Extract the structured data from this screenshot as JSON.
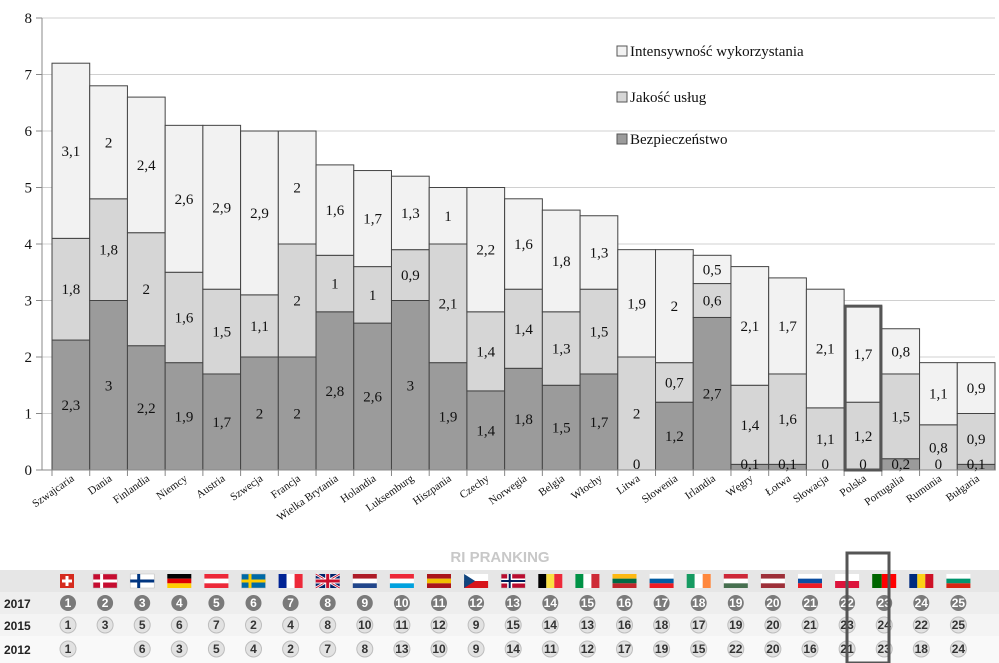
{
  "chart_data": {
    "type": "bar",
    "stacked": true,
    "title": "",
    "xlabel": "",
    "ylabel": "",
    "ylim": [
      0,
      8
    ],
    "yticks": [
      "0",
      "1",
      "2",
      "3",
      "4",
      "5",
      "6",
      "7",
      "8"
    ],
    "grid": true,
    "legend_position": "top-right",
    "categories": [
      "Szwajcaria",
      "Dania",
      "Finlandia",
      "Niemcy",
      "Austria",
      "Szwecja",
      "Francja",
      "Wielka Brytania",
      "Holandia",
      "Luksemburg",
      "Hiszpania",
      "Czechy",
      "Norwegia",
      "Belgia",
      "Włochy",
      "Litwa",
      "Słowenia",
      "Irlandia",
      "Węgry",
      "Łotwa",
      "Słowacja",
      "Polska",
      "Portugalia",
      "Rumunia",
      "Bułgaria"
    ],
    "highlighted_category": "Polska",
    "series": [
      {
        "name": "Bezpieczeństwo",
        "color": "#9b9b9b",
        "values": [
          2.3,
          3,
          2.2,
          1.9,
          1.7,
          2,
          2,
          2.8,
          2.6,
          3,
          1.9,
          1.4,
          1.8,
          1.5,
          1.7,
          0,
          1.2,
          2.7,
          0.1,
          0.1,
          0,
          0,
          0.2,
          0,
          0.1
        ],
        "labels": [
          "2,3",
          "3",
          "2,2",
          "1,9",
          "1,7",
          "2",
          "2",
          "2,8",
          "2,6",
          "3",
          "1,9",
          "1,4",
          "1,8",
          "1,5",
          "1,7",
          "0",
          "1,2",
          "2,7",
          "0,1",
          "0,1",
          "0",
          "0",
          "0,2",
          "0",
          "0,1"
        ]
      },
      {
        "name": "Jakość usług",
        "color": "#d6d6d6",
        "values": [
          1.8,
          1.8,
          2,
          1.6,
          1.5,
          1.1,
          2,
          1,
          1,
          0.9,
          2.1,
          1.4,
          1.4,
          1.3,
          1.5,
          2,
          0.7,
          0.6,
          1.4,
          1.6,
          1.1,
          1.2,
          1.5,
          0.8,
          0.9
        ],
        "labels": [
          "1,8",
          "1,8",
          "2",
          "1,6",
          "1,5",
          "1,1",
          "2",
          "1",
          "1",
          "0,9",
          "2,1",
          "1,4",
          "1,4",
          "1,3",
          "1,5",
          "2",
          "0,7",
          "0,6",
          "1,4",
          "1,6",
          "1,1",
          "1,2",
          "1,5",
          "0,8",
          "0,9"
        ]
      },
      {
        "name": "Intensywność wykorzystania",
        "color": "#f2f2f2",
        "values": [
          3.1,
          2,
          2.4,
          2.6,
          2.9,
          2.9,
          2,
          1.6,
          1.7,
          1.3,
          1,
          2.2,
          1.6,
          1.8,
          1.3,
          1.9,
          2,
          0.5,
          2.1,
          1.7,
          2.1,
          1.7,
          0.8,
          1.1,
          0.9
        ],
        "labels": [
          "3,1",
          "2",
          "2,4",
          "2,6",
          "2,9",
          "2,9",
          "2",
          "1,6",
          "1,7",
          "1,3",
          "1",
          "2,2",
          "1,6",
          "1,8",
          "1,3",
          "1,9",
          "2",
          "0,5",
          "2,1",
          "1,7",
          "2,1",
          "1,7",
          "0,8",
          "1,1",
          "0,9"
        ]
      }
    ]
  },
  "ranking": {
    "title": "RI PRANKING",
    "years": [
      "2017",
      "2015",
      "2012"
    ],
    "highlight_index": 21,
    "rows": [
      [
        "1",
        "2",
        "3",
        "4",
        "5",
        "6",
        "7",
        "8",
        "9",
        "10",
        "11",
        "12",
        "13",
        "14",
        "15",
        "16",
        "17",
        "18",
        "19",
        "20",
        "21",
        "22",
        "23",
        "24",
        "25"
      ],
      [
        "1",
        "3",
        "5",
        "6",
        "7",
        "2",
        "4",
        "8",
        "10",
        "11",
        "12",
        "9",
        "15",
        "14",
        "13",
        "16",
        "18",
        "17",
        "19",
        "20",
        "21",
        "23",
        "24",
        "22",
        "25"
      ],
      [
        "1",
        "",
        "6",
        "3",
        "5",
        "4",
        "2",
        "7",
        "8",
        "13",
        "10",
        "9",
        "14",
        "11",
        "12",
        "17",
        "19",
        "15",
        "22",
        "20",
        "16",
        "21",
        "23",
        "18",
        "24"
      ]
    ],
    "flags": [
      {
        "country": "Szwajcaria",
        "colors": [
          "#d52b1e"
        ],
        "icon": "cross-white"
      },
      {
        "country": "Dania",
        "colors": [
          "#c60c30"
        ],
        "icon": "nordic-cross-white"
      },
      {
        "country": "Finlandia",
        "colors": [
          "#ffffff"
        ],
        "icon": "nordic-cross-blue"
      },
      {
        "country": "Niemcy",
        "colors": [
          "#000000",
          "#dd0000",
          "#ffce00"
        ],
        "icon": "horizontal-tricolor"
      },
      {
        "country": "Austria",
        "colors": [
          "#ed2939",
          "#ffffff",
          "#ed2939"
        ],
        "icon": "horizontal-tricolor"
      },
      {
        "country": "Szwecja",
        "colors": [
          "#006aa7"
        ],
        "icon": "nordic-cross-yellow"
      },
      {
        "country": "Francja",
        "colors": [
          "#002395",
          "#ffffff",
          "#ed2939"
        ],
        "icon": "vertical-tricolor"
      },
      {
        "country": "Wielka Brytania",
        "colors": [
          "#012169"
        ],
        "icon": "union-jack"
      },
      {
        "country": "Holandia",
        "colors": [
          "#ae1c28",
          "#ffffff",
          "#21468b"
        ],
        "icon": "horizontal-tricolor"
      },
      {
        "country": "Luksemburg",
        "colors": [
          "#ed2939",
          "#ffffff",
          "#00a1de"
        ],
        "icon": "horizontal-tricolor"
      },
      {
        "country": "Hiszpania",
        "colors": [
          "#aa151b",
          "#f1bf00",
          "#aa151b"
        ],
        "icon": "horizontal-tricolor"
      },
      {
        "country": "Czechy",
        "colors": [
          "#ffffff",
          "#d7141a",
          "#11457e"
        ],
        "icon": "czech"
      },
      {
        "country": "Norwegia",
        "colors": [
          "#ba0c2f"
        ],
        "icon": "nordic-cross-blue-white"
      },
      {
        "country": "Belgia",
        "colors": [
          "#000000",
          "#fae042",
          "#ed2939"
        ],
        "icon": "vertical-tricolor"
      },
      {
        "country": "Włochy",
        "colors": [
          "#009246",
          "#ffffff",
          "#ce2b37"
        ],
        "icon": "vertical-tricolor"
      },
      {
        "country": "Litwa",
        "colors": [
          "#fdb913",
          "#006a44",
          "#c1272d"
        ],
        "icon": "horizontal-tricolor"
      },
      {
        "country": "Słowenia",
        "colors": [
          "#ffffff",
          "#005da4",
          "#ed1c24"
        ],
        "icon": "horizontal-tricolor"
      },
      {
        "country": "Irlandia",
        "colors": [
          "#169b62",
          "#ffffff",
          "#ff883e"
        ],
        "icon": "vertical-tricolor"
      },
      {
        "country": "Węgry",
        "colors": [
          "#ce2939",
          "#ffffff",
          "#477050"
        ],
        "icon": "horizontal-tricolor"
      },
      {
        "country": "Łotwa",
        "colors": [
          "#9e3039",
          "#ffffff",
          "#9e3039"
        ],
        "icon": "horizontal-tricolor"
      },
      {
        "country": "Słowacja",
        "colors": [
          "#ffffff",
          "#0b4ea2",
          "#ee1c25"
        ],
        "icon": "horizontal-tricolor"
      },
      {
        "country": "Polska",
        "colors": [
          "#ffffff",
          "#dc143c"
        ],
        "icon": "horizontal-bicolor"
      },
      {
        "country": "Portugalia",
        "colors": [
          "#006600",
          "#ff0000"
        ],
        "icon": "vertical-bicolor"
      },
      {
        "country": "Rumunia",
        "colors": [
          "#002b7f",
          "#fcd116",
          "#ce1126"
        ],
        "icon": "vertical-tricolor"
      },
      {
        "country": "Bułgaria",
        "colors": [
          "#ffffff",
          "#00966e",
          "#d62612"
        ],
        "icon": "horizontal-tricolor"
      }
    ]
  }
}
